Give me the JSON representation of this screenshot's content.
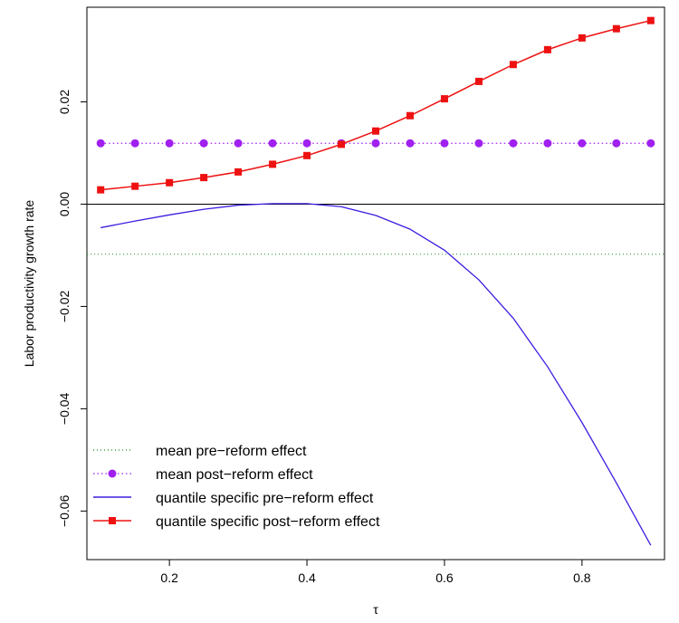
{
  "chart_data": {
    "type": "line",
    "xlabel": "τ",
    "ylabel": "Labor productivity growth rate",
    "xlim": [
      0.08,
      0.92
    ],
    "ylim": [
      -0.0695,
      0.0385
    ],
    "xticks": [
      {
        "value": 0.2,
        "label": "0.2"
      },
      {
        "value": 0.4,
        "label": "0.4"
      },
      {
        "value": 0.6,
        "label": "0.6"
      },
      {
        "value": 0.8,
        "label": "0.8"
      }
    ],
    "yticks": [
      {
        "value": -0.06,
        "label": "−0.06"
      },
      {
        "value": -0.04,
        "label": "−0.04"
      },
      {
        "value": -0.02,
        "label": "−0.02"
      },
      {
        "value": 0.0,
        "label": "0.00"
      },
      {
        "value": 0.02,
        "label": "0.02"
      }
    ],
    "reference_line": {
      "y": 0.0,
      "color": "#000000"
    },
    "x": [
      0.1,
      0.15,
      0.2,
      0.25,
      0.3,
      0.35,
      0.4,
      0.45,
      0.5,
      0.55,
      0.6,
      0.65,
      0.7,
      0.75,
      0.8,
      0.85,
      0.9
    ],
    "series": [
      {
        "name": "mean pre−reform effect",
        "style": "dotted-line",
        "color": "#1a8a1a",
        "values": [
          -0.0098,
          -0.0098,
          -0.0098,
          -0.0098,
          -0.0098,
          -0.0098,
          -0.0098,
          -0.0098,
          -0.0098,
          -0.0098,
          -0.0098,
          -0.0098,
          -0.0098,
          -0.0098,
          -0.0098,
          -0.0098,
          -0.0098
        ]
      },
      {
        "name": "mean post−reform effect",
        "style": "dotted-line-circles",
        "color": "#a020f0",
        "values": [
          0.0119,
          0.0119,
          0.0119,
          0.0119,
          0.0119,
          0.0119,
          0.0119,
          0.0119,
          0.0119,
          0.0119,
          0.0119,
          0.0119,
          0.0119,
          0.0119,
          0.0119,
          0.0119,
          0.0119
        ]
      },
      {
        "name": "quantile specific pre−reform effect",
        "style": "solid-line",
        "color": "#3a1ee0",
        "values": [
          -0.0046,
          -0.0033,
          -0.0021,
          -0.001,
          -0.0002,
          0.0001,
          0.0001,
          -0.0005,
          -0.0022,
          -0.0049,
          -0.009,
          -0.0148,
          -0.0223,
          -0.0318,
          -0.0427,
          -0.0545,
          -0.0667
        ]
      },
      {
        "name": "quantile specific post−reform effect",
        "style": "solid-line-squares",
        "color": "#ee1111",
        "values": [
          0.0028,
          0.0035,
          0.0042,
          0.0052,
          0.0063,
          0.0078,
          0.0095,
          0.0117,
          0.0143,
          0.0173,
          0.0206,
          0.024,
          0.0273,
          0.0302,
          0.0325,
          0.0343,
          0.0359
        ]
      }
    ],
    "legend": {
      "position": "bottom-left",
      "border": false
    }
  }
}
